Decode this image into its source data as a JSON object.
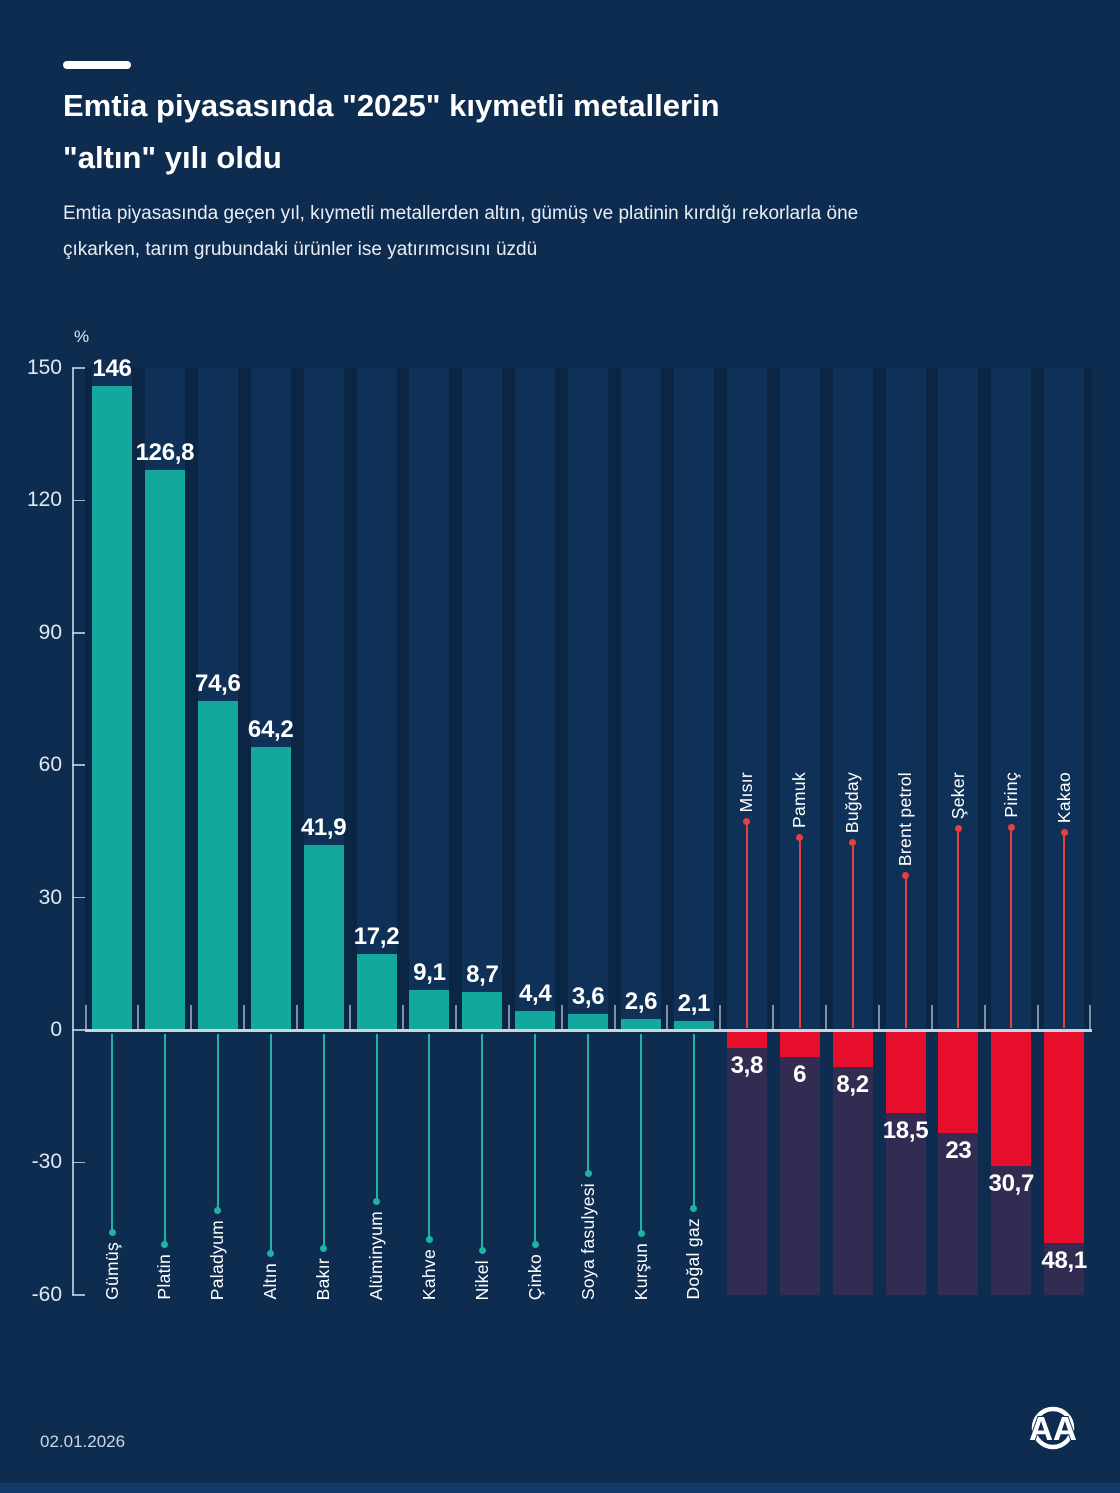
{
  "header": {
    "title": "Emtia piyasasında \"2025\" kıymetli metallerin \"altın\" yılı oldu",
    "subtitle": "Emtia piyasasında geçen yıl, kıymetli metallerden altın, gümüş ve platinin kırdığı rekorlarla öne çıkarken, tarım grubundaki ürünler ise yatırımcısını üzdü"
  },
  "chart_data": {
    "type": "bar",
    "title": "Emtia piyasasında \"2025\" kıymetli metallerin \"altın\" yılı oldu",
    "year_label": "2025",
    "y_axis": {
      "unit": "%",
      "min": -60,
      "max": 150,
      "tick_step": 30,
      "ticks": [
        150,
        120,
        90,
        60,
        30,
        0,
        -30,
        -60
      ],
      "tick_labels": [
        "150",
        "120",
        "90",
        "60",
        "30",
        "0",
        "-30",
        "-60"
      ]
    },
    "grid": "off",
    "legend": "none",
    "series": [
      {
        "name": "Gümüş",
        "value": 146,
        "display": "146"
      },
      {
        "name": "Platin",
        "value": 126.8,
        "display": "126,8"
      },
      {
        "name": "Paladyum",
        "value": 74.6,
        "display": "74,6"
      },
      {
        "name": "Altın",
        "value": 64.2,
        "display": "64,2"
      },
      {
        "name": "Bakır",
        "value": 41.9,
        "display": "41,9"
      },
      {
        "name": "Alüminyum",
        "value": 17.2,
        "display": "17,2"
      },
      {
        "name": "Kahve",
        "value": 9.1,
        "display": "9,1"
      },
      {
        "name": "Nikel",
        "value": 8.7,
        "display": "8,7"
      },
      {
        "name": "Çinko",
        "value": 4.4,
        "display": "4,4"
      },
      {
        "name": "Soya fasulyesi",
        "value": 3.6,
        "display": "3,6"
      },
      {
        "name": "Kurşun",
        "value": 2.6,
        "display": "2,6"
      },
      {
        "name": "Doğal gaz",
        "value": 2.1,
        "display": "2,1"
      },
      {
        "name": "Mısır",
        "value": -3.8,
        "display": "3,8"
      },
      {
        "name": "Pamuk",
        "value": -6,
        "display": "6"
      },
      {
        "name": "Buğday",
        "value": -8.2,
        "display": "8,2"
      },
      {
        "name": "Brent petrol",
        "value": -18.5,
        "display": "18,5"
      },
      {
        "name": "Şeker",
        "value": -23,
        "display": "23"
      },
      {
        "name": "Pirinç",
        "value": -30.7,
        "display": "30,7"
      },
      {
        "name": "Kakao",
        "value": -48.1,
        "display": "48,1"
      }
    ],
    "colors": {
      "background": "#0e2c50",
      "plot_backdrop": "#0b2544",
      "column_stripe": "#0f3158",
      "negative_track": "#332b52",
      "positive_bar": "#14a79d",
      "negative_bar": "#e60e2b",
      "positive_leader": "#1fb3a8",
      "negative_leader": "#e8403e",
      "axis": "#c9d4e0"
    }
  },
  "footer": {
    "date": "02.01.2026",
    "logo_text": "AA"
  }
}
